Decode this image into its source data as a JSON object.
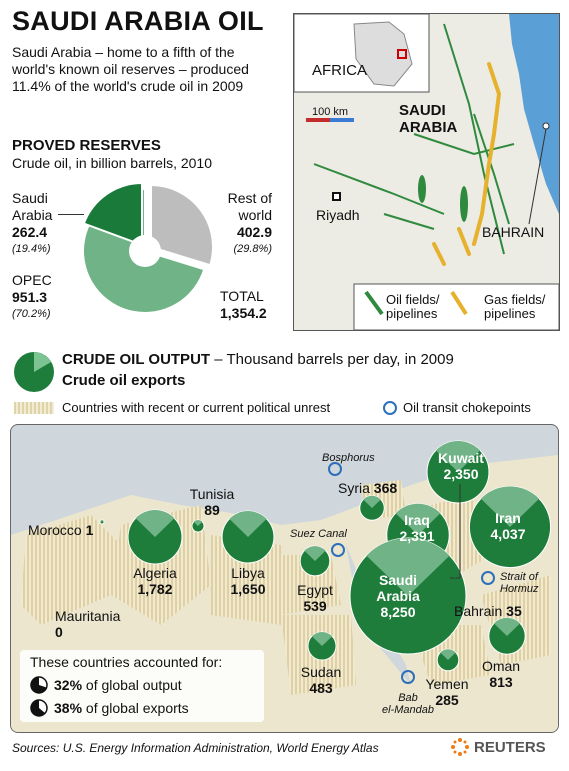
{
  "title": "SAUDI ARABIA OIL",
  "intro": "Saudi Arabia – home to a fifth of the world's known oil reserves – produced 11.4% of the world's crude oil in 2009",
  "reserves": {
    "heading": "PROVED RESERVES",
    "subheading": "Crude oil, in billion barrels, 2010",
    "saudi": {
      "name_line1": "Saudi",
      "name_line2": "Arabia",
      "value": "262.4",
      "pct": "(19.4%)"
    },
    "rest": {
      "name_line1": "Rest of",
      "name_line2": "world",
      "value": "402.9",
      "pct": "(29.8%)"
    },
    "opec": {
      "name": "OPEC",
      "value": "951.3",
      "pct": "(70.2%)"
    },
    "total": {
      "label": "TOTAL",
      "value": "1,354.2"
    }
  },
  "chart_data": {
    "type": "pie",
    "title": "PROVED RESERVES",
    "subtitle": "Crude oil, in billion barrels, 2010",
    "categories": [
      "Saudi Arabia",
      "OPEC",
      "Rest of world"
    ],
    "values": [
      262.4,
      951.3,
      402.9
    ],
    "percent": [
      19.4,
      70.2,
      29.8
    ],
    "total": 1354.2,
    "colors": {
      "saudi": "#1a7a3a",
      "opec": "#6fb386",
      "rest": "#bdbdbd"
    }
  },
  "inset_map": {
    "africa": "AFRICA",
    "scale": "100 km",
    "saudi_line1": "SAUDI",
    "saudi_line2": "ARABIA",
    "riyadh": "Riyadh",
    "bahrain": "BAHRAIN",
    "legend_oil_line1": "Oil fields/",
    "legend_oil_line2": "pipelines",
    "legend_gas_line1": "Gas fields/",
    "legend_gas_line2": "pipelines"
  },
  "legend": {
    "output_title": "CRUDE OIL OUTPUT",
    "output_sub": " – Thousand barrels per day, in 2009",
    "exports": "Crude oil exports",
    "unrest": "Countries with recent or current political unrest",
    "chokepoints": "Oil transit chokepoints"
  },
  "map_data": {
    "countries": [
      {
        "name": "Morocco",
        "value": "1"
      },
      {
        "name": "Mauritania",
        "value": "0"
      },
      {
        "name": "Algeria",
        "value": "1,782"
      },
      {
        "name": "Tunisia",
        "value": "89"
      },
      {
        "name": "Libya",
        "value": "1,650"
      },
      {
        "name": "Egypt",
        "value": "539"
      },
      {
        "name": "Sudan",
        "value": "483"
      },
      {
        "name": "Syria",
        "value": "368"
      },
      {
        "name": "Iraq",
        "value": "2,391"
      },
      {
        "name": "Kuwait",
        "value": "2,350"
      },
      {
        "name": "Iran",
        "value": "4,037"
      },
      {
        "name": "Saudi Arabia",
        "value": "8,250"
      },
      {
        "name": "Bahrain",
        "value": "35"
      },
      {
        "name": "Oman",
        "value": "813"
      },
      {
        "name": "Yemen",
        "value": "285"
      }
    ],
    "chokepoints": [
      "Bosphorus",
      "Suez Canal",
      "Strait of Hormuz",
      "Bab el-Mandab"
    ]
  },
  "labels": {
    "morocco": "Morocco",
    "morocco_v": "1",
    "mauritania": "Mauritania",
    "mauritania_v": "0",
    "algeria": "Algeria",
    "algeria_v": "1,782",
    "tunisia": "Tunisia",
    "tunisia_v": "89",
    "libya": "Libya",
    "libya_v": "1,650",
    "egypt": "Egypt",
    "egypt_v": "539",
    "sudan": "Sudan",
    "sudan_v": "483",
    "syria": "Syria",
    "syria_v": "368",
    "iraq": "Iraq",
    "iraq_v": "2,391",
    "kuwait": "Kuwait",
    "kuwait_v": "2,350",
    "iran": "Iran",
    "iran_v": "4,037",
    "saudi1": "Saudi",
    "saudi2": "Arabia",
    "saudi_v": "8,250",
    "bahrain": "Bahrain",
    "bahrain_v": "35",
    "oman": "Oman",
    "oman_v": "813",
    "yemen": "Yemen",
    "yemen_v": "285",
    "bosphorus": "Bosphorus",
    "suez": "Suez Canal",
    "hormuz1": "Strait of",
    "hormuz2": "Hormuz",
    "bab1": "Bab",
    "bab2": "el-Mandab"
  },
  "share_box": {
    "title": "These countries accounted for:",
    "output_pct": "32%",
    "output_text": "of global output",
    "exports_pct": "38%",
    "exports_text": "of global exports"
  },
  "source": "Sources: U.S. Energy Information Administration, World Energy Atlas",
  "brand": "REUTERS"
}
